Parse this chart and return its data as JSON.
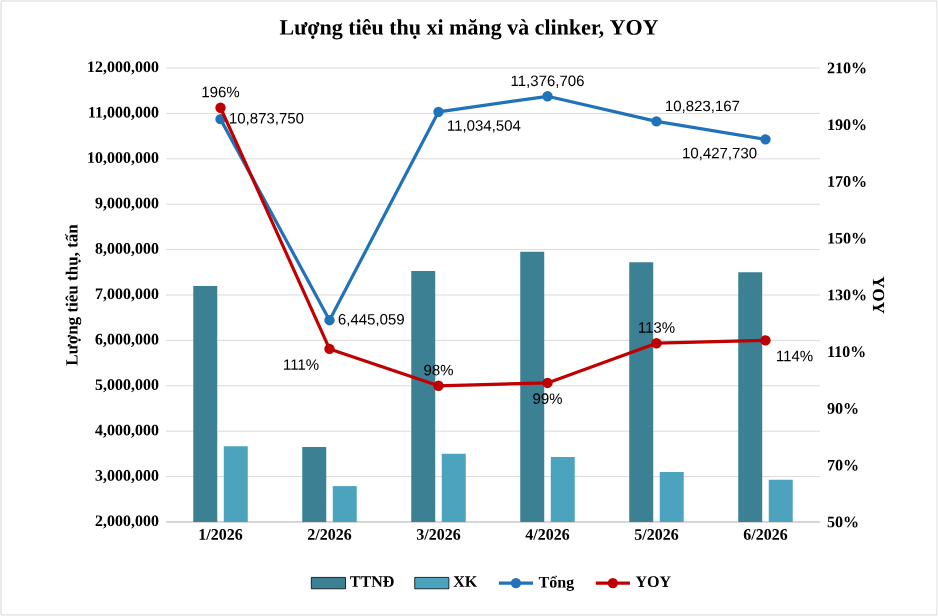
{
  "chart_data": {
    "type": "bar",
    "title": "Lượng tiêu thụ xi măng và clinker,  YOY",
    "ylabel": "Lượng tiêu thụ, tấn",
    "y2label": "YOY",
    "categories": [
      "1/2026",
      "2/2026",
      "3/2026",
      "4/2026",
      "5/2026",
      "6/2026"
    ],
    "series": [
      {
        "name": "TTNĐ",
        "color": "#3b8093",
        "values": [
          7200000,
          3650000,
          7530000,
          7950000,
          7720000,
          7500000
        ]
      },
      {
        "name": "XK",
        "color": "#4ba3bd",
        "values": [
          3670000,
          2790000,
          3500000,
          3430000,
          3100000,
          2930000
        ]
      },
      {
        "name": "Tổng",
        "type": "line",
        "color": "#2072b9",
        "values": [
          10873750,
          6445059,
          11034504,
          11376706,
          10823167,
          10427730
        ],
        "value_labels": [
          "10,873,750",
          "6,445,059",
          "11,034,504",
          "11,376,706",
          "10,823,167",
          "10,427,730"
        ]
      },
      {
        "name": "YOY",
        "type": "line",
        "axis": "y2",
        "color": "#c00000",
        "values": [
          196,
          111,
          98,
          99,
          113,
          114
        ],
        "value_labels": [
          "196%",
          "111%",
          "98%",
          "99%",
          "113%",
          "114%"
        ]
      }
    ],
    "ylim": [
      2000000,
      12000000
    ],
    "yticks": [
      {
        "value": 2000000,
        "label": "2,000,000"
      },
      {
        "value": 3000000,
        "label": "3,000,000"
      },
      {
        "value": 4000000,
        "label": "4,000,000"
      },
      {
        "value": 5000000,
        "label": "5,000,000"
      },
      {
        "value": 6000000,
        "label": "6,000,000"
      },
      {
        "value": 7000000,
        "label": "7,000,000"
      },
      {
        "value": 8000000,
        "label": "8,000,000"
      },
      {
        "value": 9000000,
        "label": "9,000,000"
      },
      {
        "value": 10000000,
        "label": "10,000,000"
      },
      {
        "value": 11000000,
        "label": "11,000,000"
      },
      {
        "value": 12000000,
        "label": "12,000,000"
      }
    ],
    "y2lim": [
      50,
      210
    ],
    "y2ticks": [
      {
        "value": 50,
        "label": "50%"
      },
      {
        "value": 70,
        "label": "70%"
      },
      {
        "value": 90,
        "label": "90%"
      },
      {
        "value": 110,
        "label": "110%"
      },
      {
        "value": 130,
        "label": "130%"
      },
      {
        "value": 150,
        "label": "150%"
      },
      {
        "value": 170,
        "label": "170%"
      },
      {
        "value": 190,
        "label": "190%"
      },
      {
        "value": 210,
        "label": "210%"
      }
    ],
    "grid": "y",
    "legend": "bottom",
    "marker": "circle"
  }
}
